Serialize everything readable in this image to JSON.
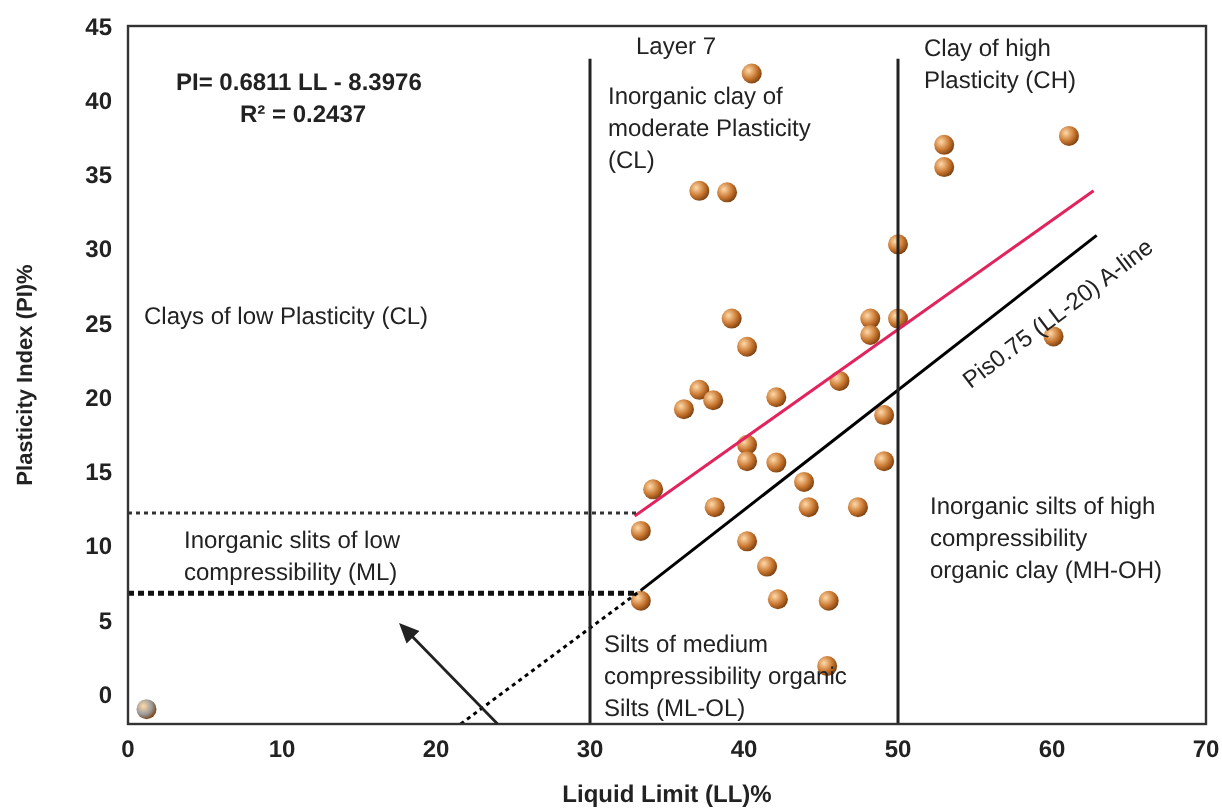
{
  "chart_data": {
    "type": "scatter",
    "title": "Layer 7",
    "xlabel": "Liquid Limit (LL)%",
    "ylabel": "Plasticity Index (PI)%",
    "xlim": [
      0,
      70
    ],
    "ylim": [
      -2,
      45
    ],
    "xticks": [
      0,
      10,
      20,
      30,
      40,
      50,
      60,
      70
    ],
    "yticks": [
      0,
      5,
      10,
      15,
      20,
      25,
      30,
      35,
      40,
      45
    ],
    "grid": false,
    "legend": false,
    "marker": "circle",
    "series": [
      {
        "color": "#c8762f",
        "x": [
          40.5,
          53.0,
          53.0,
          61.1,
          37.1,
          38.9,
          50.0,
          39.2,
          48.2,
          50.0,
          48.2,
          40.2,
          60.1,
          46.2,
          37.1,
          38.0,
          36.1,
          42.1,
          49.1,
          40.2,
          40.2,
          42.1,
          49.1,
          34.1,
          43.9,
          38.1,
          44.2,
          47.4,
          33.3,
          40.2,
          41.5,
          33.3,
          42.2,
          45.5,
          45.4
        ],
        "values": [
          41.8,
          37.0,
          35.5,
          37.6,
          33.9,
          33.8,
          30.3,
          25.3,
          25.3,
          25.3,
          24.2,
          23.4,
          24.1,
          21.1,
          20.5,
          19.8,
          19.2,
          20.0,
          18.8,
          16.8,
          15.7,
          15.6,
          15.7,
          13.8,
          14.3,
          12.6,
          12.6,
          12.6,
          11.0,
          10.3,
          8.6,
          6.3,
          6.4,
          6.3,
          1.9
        ]
      },
      {
        "color": "#9a9a9a",
        "x": [
          1.2
        ],
        "values": [
          -1.0
        ]
      },
      {
        "type": "line",
        "color": "#e2245e",
        "marker": "none",
        "line_style": "solid",
        "x": [
          32.9,
          62.7
        ],
        "values": [
          12.0,
          33.9
        ]
      },
      {
        "type": "line",
        "color": "#000000",
        "marker": "none",
        "line_style": "dotted",
        "x": [
          21.6,
          33.3
        ],
        "values": [
          -2,
          7.0
        ]
      },
      {
        "type": "line",
        "color": "#000000",
        "marker": "none",
        "line_style": "solid",
        "x": [
          33.3,
          62.9
        ],
        "values": [
          7.0,
          30.9
        ]
      },
      {
        "type": "line",
        "color": "#333333",
        "marker": "none",
        "line_style": "dotted",
        "x": [
          0,
          33
        ],
        "values": [
          12.2,
          12.2
        ]
      },
      {
        "type": "line",
        "color": "#111111",
        "marker": "none",
        "line_style": "dotted",
        "x": [
          0,
          33
        ],
        "values": [
          6.8,
          6.8
        ]
      },
      {
        "type": "line",
        "color": "#222222",
        "marker": "none",
        "line_style": "solid",
        "x": [
          30,
          30
        ],
        "values": [
          -2,
          42.8
        ]
      },
      {
        "type": "line",
        "color": "#222222",
        "marker": "none",
        "line_style": "solid",
        "x": [
          50,
          50
        ],
        "values": [
          -2,
          42.8
        ]
      }
    ],
    "annotations": [
      "PI= 0.6811 LL - 8.3976",
      "R² = 0.2437",
      "Clays of low Plasticity (CL)",
      "Inorganic clay of\nmoderate Plasticity\n(CL)",
      "Clay of high\nPlasticity (CH)",
      "Pis0.75 (LL-20) A-line",
      "Inorganic slits of low\ncompressibility (ML)",
      "Silts of medium\ncompressibility organic\nSilts (ML-OL)",
      "Inorganic silts of high\ncompressibility\norganic clay (MH-OH)"
    ]
  }
}
